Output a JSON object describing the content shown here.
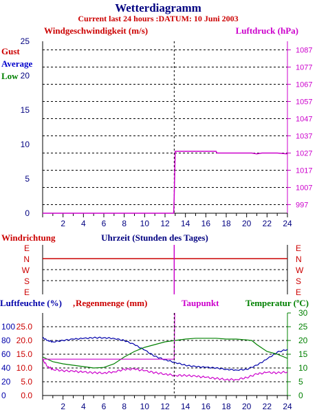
{
  "header": {
    "title": "Wetterdiagramm",
    "subtitle": "Current last 24 hours :DATUM: 10 Juni 2003"
  },
  "colors": {
    "wind": "#cc0000",
    "pressure": "#cc00cc",
    "avg": "#0000cc",
    "low": "#008000",
    "humidity": "#0000aa",
    "rain": "#cc0000",
    "dew": "#cc00cc",
    "temp": "#008000",
    "dark": "#000080"
  },
  "chart_data": [
    {
      "type": "line",
      "title": "",
      "left_axis_label": "Windgeschwindigkeit (m/s)",
      "right_axis_label": "Luftdruck (hPa)",
      "legend": [
        "Gust",
        "Average",
        "Low"
      ],
      "x_ticks": [
        "2",
        "4",
        "6",
        "8",
        "10",
        "12",
        "14",
        "16",
        "18",
        "20",
        "22",
        "24"
      ],
      "xlim": [
        0,
        24
      ],
      "y_left_ticks": [
        "0",
        "5",
        "10",
        "15",
        "20",
        "25"
      ],
      "ylim_left": [
        0,
        25
      ],
      "y_right_ticks": [
        "997",
        "1007",
        "1017",
        "1027",
        "1037",
        "1047",
        "1057",
        "1067",
        "1077",
        "1087"
      ],
      "ylim_right": [
        992,
        1092
      ],
      "current_time_marker": 12.9,
      "series": [
        {
          "name": "Luftdruck (hPa)",
          "axis": "right",
          "color": "#cc00cc",
          "x": [
            0,
            12.85,
            12.9,
            13.0,
            13.1,
            17.0,
            17.1,
            20.5,
            21.0,
            21.5,
            22.0,
            23.0,
            24
          ],
          "y": [
            992,
            992,
            1001,
            1028,
            1028,
            1028,
            1027,
            1027,
            1026.5,
            1027,
            1027,
            1027,
            1026.5
          ]
        }
      ]
    },
    {
      "type": "line",
      "title": "Windrichtung",
      "xlabel": "Uhrzeit (Stunden des Tages)",
      "y_ticks": [
        "E",
        "N",
        "W",
        "S",
        "E"
      ],
      "series": [
        {
          "name": "Windrichtung",
          "color": "#cc0000",
          "x": [
            0,
            24
          ],
          "y": [
            "N",
            "N"
          ]
        }
      ]
    },
    {
      "type": "line",
      "title": "",
      "labels": {
        "humidity": "Luftfeuchte (%)",
        "rain": "Regenmenge (mm)",
        "dew": "Taupunkt",
        "temp": "Temperatur (ºC)"
      },
      "x_ticks": [
        "2",
        "4",
        "6",
        "8",
        "10",
        "12",
        "14",
        "16",
        "18",
        "20",
        "22",
        "24"
      ],
      "xlim": [
        0,
        24
      ],
      "y_humidity_ticks": [
        "0",
        "20",
        "40",
        "60",
        "80",
        "100"
      ],
      "y_rain_ticks": [
        "0.0",
        "5.0",
        "10.0",
        "15.0",
        "20.0",
        "25.0"
      ],
      "y_temp_ticks": [
        "0",
        "5",
        "10",
        "15",
        "20",
        "25",
        "30"
      ],
      "ylim_humidity": [
        0,
        120
      ],
      "ylim_temp": [
        0,
        30
      ],
      "series": [
        {
          "name": "Luftfeuchte (%)",
          "axis": "humidity",
          "color": "#0000aa",
          "x": [
            0,
            0.5,
            1,
            2,
            3,
            4,
            5,
            6,
            7,
            8,
            9,
            10,
            11,
            12,
            13,
            14,
            15,
            16,
            17,
            18,
            19,
            20,
            21,
            22,
            23,
            24
          ],
          "y": [
            84,
            80,
            78,
            80,
            82,
            83,
            84,
            84,
            83,
            80,
            74,
            66,
            57,
            52,
            48,
            44,
            42,
            41,
            40,
            38,
            37,
            38,
            44,
            53,
            63,
            67
          ]
        },
        {
          "name": "Temperatur (ºC)",
          "axis": "temp",
          "color": "#008000",
          "x": [
            0,
            1,
            2,
            3,
            4,
            5,
            6,
            7,
            8,
            9,
            10,
            11,
            12,
            13,
            14,
            15,
            16,
            17,
            18,
            19,
            20,
            20.5,
            21,
            22,
            23,
            24
          ],
          "y": [
            14,
            12.3,
            11.5,
            11,
            10.5,
            10,
            10.2,
            11.5,
            14,
            16,
            17.5,
            18.5,
            19.5,
            20,
            20.5,
            20.8,
            20.8,
            20.8,
            20.5,
            20.5,
            20.2,
            20,
            18.5,
            16,
            15,
            13.5
          ]
        },
        {
          "name": "Taupunkt",
          "axis": "temp",
          "color": "#cc00cc",
          "x": [
            0,
            0.5,
            1,
            2,
            3,
            4,
            5,
            6,
            7,
            8,
            9,
            10,
            11,
            12,
            13,
            14,
            15,
            16,
            17,
            18,
            19,
            20,
            21,
            22,
            23,
            24
          ],
          "y": [
            13,
            10.5,
            9.5,
            9,
            8.8,
            8.5,
            8.3,
            8.2,
            8.6,
            9.5,
            9.6,
            9,
            8.3,
            7.8,
            7.3,
            7.3,
            7,
            6.6,
            6.2,
            5.8,
            5.8,
            6.5,
            7.8,
            8.4,
            8.2,
            8.6
          ]
        },
        {
          "name": "Regenmenge (mm)",
          "axis": "temp",
          "color": "#cc00cc",
          "x": [
            0,
            12.9,
            12.95
          ],
          "y": [
            13.2,
            13.2,
            30
          ]
        }
      ]
    }
  ]
}
